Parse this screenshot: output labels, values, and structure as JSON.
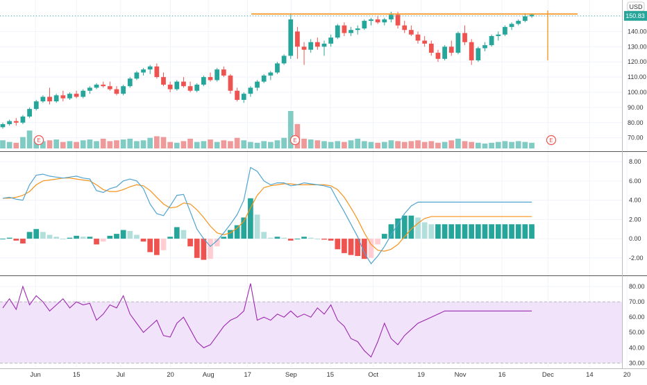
{
  "chart_data": [
    {
      "type": "candlestick",
      "panel": "price",
      "currency_label": "USD",
      "last_price_label": "150.83",
      "yticks": [
        "150.00",
        "140.00",
        "130.00",
        "120.00",
        "110.00",
        "100.00",
        "90.00",
        "80.00",
        "70.00"
      ],
      "ylim": [
        63,
        158
      ],
      "earnings_marker": "E",
      "earnings_at": [
        5,
        42,
        80
      ],
      "resistance_level": 151.5,
      "target_line": {
        "x_index": 79,
        "top": 152,
        "bottom": 121
      },
      "colors": {
        "up": "#26a69a",
        "down": "#ef5350",
        "line": "#f7931a",
        "vol_up": "#80cbc4",
        "vol_down": "#ef9a9a"
      },
      "candles": [
        [
          77,
          80,
          76,
          79
        ],
        [
          79,
          82,
          78,
          81
        ],
        [
          81,
          83,
          78,
          80
        ],
        [
          80,
          85,
          79,
          84
        ],
        [
          84,
          90,
          83,
          89
        ],
        [
          89,
          95,
          88,
          94
        ],
        [
          94,
          98,
          93,
          97
        ],
        [
          97,
          103,
          92,
          94
        ],
        [
          94,
          99,
          93,
          98
        ],
        [
          98,
          101,
          94,
          96
        ],
        [
          96,
          100,
          95,
          99
        ],
        [
          99,
          101,
          96,
          97
        ],
        [
          97,
          102,
          96,
          101
        ],
        [
          101,
          104,
          99,
          103
        ],
        [
          103,
          106,
          102,
          105
        ],
        [
          105,
          107,
          103,
          104
        ],
        [
          104,
          107,
          101,
          102
        ],
        [
          102,
          104,
          98,
          99
        ],
        [
          99,
          105,
          98,
          104
        ],
        [
          104,
          110,
          103,
          109
        ],
        [
          109,
          114,
          108,
          113
        ],
        [
          113,
          116,
          111,
          115
        ],
        [
          115,
          118,
          112,
          117
        ],
        [
          117,
          119,
          109,
          110
        ],
        [
          110,
          113,
          104,
          105
        ],
        [
          105,
          107,
          100,
          102
        ],
        [
          102,
          108,
          101,
          107
        ],
        [
          107,
          110,
          103,
          104
        ],
        [
          104,
          107,
          100,
          101
        ],
        [
          101,
          106,
          100,
          105
        ],
        [
          105,
          111,
          104,
          110
        ],
        [
          110,
          113,
          107,
          108
        ],
        [
          108,
          116,
          107,
          115
        ],
        [
          115,
          117,
          110,
          111
        ],
        [
          111,
          112,
          99,
          101
        ],
        [
          101,
          103,
          94,
          95
        ],
        [
          95,
          100,
          93,
          99
        ],
        [
          99,
          104,
          97,
          103
        ],
        [
          103,
          108,
          101,
          107
        ],
        [
          107,
          112,
          106,
          111
        ],
        [
          111,
          114,
          108,
          113
        ],
        [
          113,
          120,
          112,
          119
        ],
        [
          119,
          125,
          118,
          124
        ],
        [
          124,
          152,
          122,
          148
        ],
        [
          140,
          143,
          122,
          130
        ],
        [
          130,
          133,
          118,
          128
        ],
        [
          128,
          135,
          126,
          133
        ],
        [
          133,
          136,
          128,
          130
        ],
        [
          130,
          134,
          124,
          132
        ],
        [
          132,
          138,
          130,
          136
        ],
        [
          136,
          145,
          135,
          144
        ],
        [
          144,
          146,
          137,
          139
        ],
        [
          139,
          143,
          137,
          141
        ],
        [
          141,
          144,
          138,
          142
        ],
        [
          142,
          148,
          141,
          147
        ],
        [
          147,
          149,
          144,
          148
        ],
        [
          148,
          150,
          145,
          146
        ],
        [
          146,
          149,
          144,
          148
        ],
        [
          148,
          153,
          146,
          151
        ],
        [
          151,
          153,
          142,
          144
        ],
        [
          144,
          147,
          139,
          141
        ],
        [
          141,
          144,
          137,
          138
        ],
        [
          138,
          140,
          132,
          134
        ],
        [
          134,
          137,
          130,
          132
        ],
        [
          132,
          134,
          124,
          126
        ],
        [
          126,
          128,
          120,
          122
        ],
        [
          122,
          131,
          121,
          130
        ],
        [
          130,
          134,
          124,
          126
        ],
        [
          126,
          140,
          125,
          139
        ],
        [
          139,
          144,
          131,
          133
        ],
        [
          133,
          135,
          118,
          121
        ],
        [
          121,
          130,
          120,
          129
        ],
        [
          129,
          133,
          127,
          131
        ],
        [
          131,
          138,
          130,
          137
        ],
        [
          137,
          140,
          134,
          138
        ],
        [
          138,
          144,
          137,
          143
        ],
        [
          143,
          146,
          141,
          145
        ],
        [
          145,
          148,
          144,
          147
        ],
        [
          147,
          152,
          146,
          150
        ],
        [
          150,
          152,
          149,
          151
        ]
      ],
      "volumes": [
        10,
        8,
        7,
        14,
        22,
        12,
        9,
        10,
        11,
        8,
        9,
        8,
        10,
        11,
        9,
        12,
        9,
        10,
        11,
        12,
        9,
        10,
        13,
        15,
        14,
        8,
        7,
        9,
        12,
        8,
        9,
        11,
        8,
        10,
        9,
        13,
        10,
        8,
        7,
        9,
        8,
        10,
        13,
        46,
        30,
        12,
        11,
        10,
        9,
        8,
        9,
        8,
        10,
        12,
        9,
        8,
        7,
        8,
        10,
        9,
        8,
        9,
        10,
        8,
        9,
        7,
        8,
        10,
        12,
        9,
        8,
        7,
        6,
        7,
        8,
        9,
        8,
        9,
        8,
        7
      ]
    },
    {
      "type": "macd",
      "panel": "macd",
      "yticks": [
        "8.00",
        "6.00",
        "4.00",
        "2.00",
        "0.00",
        "-2.00"
      ],
      "ylim": [
        -3.6,
        8.8
      ],
      "colors": {
        "macd": "#4fa3d1",
        "signal": "#f7931a",
        "hist_pos_strong": "#26a69a",
        "hist_pos_weak": "#b2dfdb",
        "hist_neg_strong": "#ef5350",
        "hist_neg_weak": "#ffcdd2"
      },
      "macd": [
        4.2,
        4.3,
        4.1,
        4.0,
        5.6,
        6.6,
        6.7,
        6.5,
        6.4,
        6.3,
        6.4,
        6.5,
        6.3,
        6.2,
        5.0,
        4.8,
        5.2,
        5.4,
        6.0,
        6.2,
        6.0,
        5.2,
        3.6,
        2.6,
        2.4,
        3.4,
        4.5,
        4.6,
        2.8,
        1.0,
        0.0,
        -0.8,
        -0.2,
        0.6,
        1.5,
        2.5,
        4.0,
        7.4,
        7.0,
        6.0,
        5.6,
        5.8,
        5.8,
        5.5,
        5.6,
        5.8,
        5.7,
        5.6,
        5.5,
        5.3,
        4.0,
        2.8,
        1.5,
        0.2,
        -1.5,
        -2.6,
        -1.8,
        -0.8,
        0.4,
        1.5,
        2.6,
        3.4,
        3.8,
        3.8,
        3.8,
        3.8,
        3.8,
        3.8,
        3.8,
        3.8,
        3.8,
        3.8,
        3.8,
        3.8,
        3.8,
        3.8,
        3.8,
        3.8,
        3.8,
        3.8
      ],
      "signal": [
        4.2,
        4.2,
        4.3,
        4.5,
        4.9,
        5.6,
        6.0,
        6.1,
        6.2,
        6.3,
        6.3,
        6.2,
        6.1,
        6.0,
        5.6,
        5.1,
        4.9,
        4.9,
        5.1,
        5.4,
        5.6,
        5.5,
        5.0,
        4.3,
        3.6,
        3.2,
        3.3,
        3.7,
        3.6,
        3.0,
        2.2,
        1.3,
        0.6,
        0.4,
        0.6,
        1.1,
        1.8,
        3.2,
        4.5,
        5.3,
        5.5,
        5.6,
        5.7,
        5.7,
        5.6,
        5.6,
        5.6,
        5.6,
        5.6,
        5.5,
        5.1,
        4.3,
        3.2,
        2.0,
        0.6,
        -0.6,
        -1.2,
        -1.3,
        -1.1,
        -0.6,
        0.2,
        1.0,
        1.6,
        2.1,
        2.3,
        2.3,
        2.3,
        2.3,
        2.3,
        2.3,
        2.3,
        2.3,
        2.3,
        2.3,
        2.3,
        2.3,
        2.3,
        2.3,
        2.3,
        2.3
      ]
    },
    {
      "type": "rsi",
      "panel": "rsi",
      "yticks": [
        "80.00",
        "70.00",
        "60.00",
        "50.00",
        "40.00",
        "30.00"
      ],
      "ylim": [
        27,
        85
      ],
      "band": [
        30,
        70
      ],
      "colors": {
        "line": "#9c27b0",
        "band": "#f0e3fa",
        "band_line": "#b8b8b8"
      },
      "values": [
        66,
        72,
        65,
        80,
        68,
        74,
        70,
        64,
        68,
        72,
        66,
        70,
        68,
        69,
        58,
        62,
        68,
        66,
        74,
        62,
        56,
        50,
        54,
        58,
        48,
        47,
        56,
        60,
        52,
        44,
        40,
        42,
        48,
        54,
        58,
        60,
        64,
        82,
        58,
        60,
        58,
        62,
        60,
        64,
        60,
        62,
        60,
        66,
        62,
        68,
        58,
        54,
        46,
        44,
        38,
        34,
        44,
        56,
        46,
        42,
        48,
        52,
        56,
        58,
        60,
        62,
        64,
        64,
        64,
        64,
        64,
        64,
        64,
        64,
        64,
        64,
        64,
        64,
        64,
        64
      ]
    }
  ],
  "x_axis": {
    "labels": [
      "Jun",
      "15",
      "Jul",
      "20",
      "Aug",
      "17",
      "Sep",
      "15",
      "Oct",
      "19",
      "Nov",
      "16",
      "Dec",
      "14",
      "20"
    ],
    "label_positions_pct": [
      5.7,
      12.3,
      19.4,
      27.4,
      33.5,
      39.8,
      46.8,
      53.1,
      60.0,
      67.7,
      74.0,
      80.7,
      88.1,
      94.8,
      100.8
    ]
  }
}
